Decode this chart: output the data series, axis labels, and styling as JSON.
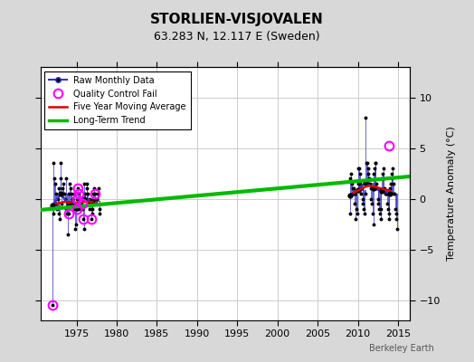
{
  "title": "STORLIEN-VISJOVALEN",
  "subtitle": "63.283 N, 12.117 E (Sweden)",
  "ylabel": "Temperature Anomaly (°C)",
  "watermark": "Berkeley Earth",
  "xlim": [
    1970.5,
    2016.5
  ],
  "ylim": [
    -12,
    13
  ],
  "yticks": [
    -10,
    -5,
    0,
    5,
    10
  ],
  "xticks": [
    1975,
    1980,
    1985,
    1990,
    1995,
    2000,
    2005,
    2010,
    2015
  ],
  "background_color": "#d8d8d8",
  "plot_bg_color": "#ffffff",
  "grid_color": "#cccccc",
  "segment1_years": [
    1972,
    1973,
    1974,
    1975,
    1976,
    1977
  ],
  "segment1_monthly_data": [
    [
      1972,
      [
        -10.5,
        -1.5,
        3.5,
        2.0,
        1.5,
        0.5,
        -0.5,
        -1.0,
        0.0,
        1.0,
        -1.5,
        -2.0
      ]
    ],
    [
      1973,
      [
        3.5,
        2.0,
        -0.5,
        1.0,
        1.5,
        0.5,
        0.5,
        0.0,
        -1.0,
        2.0,
        -1.5,
        -3.5
      ]
    ],
    [
      1974,
      [
        -1.5,
        0.5,
        1.5,
        1.0,
        0.5,
        -0.5,
        0.0,
        -0.5,
        -1.0,
        0.5,
        -3.0,
        -2.5
      ]
    ],
    [
      1975,
      [
        -1.0,
        0.0,
        1.0,
        0.5,
        -0.5,
        -1.0,
        -0.5,
        -0.5,
        0.0,
        -1.0,
        -2.0,
        -3.0
      ]
    ],
    [
      1976,
      [
        1.5,
        0.5,
        0.0,
        1.0,
        1.5,
        0.5,
        -0.5,
        -1.0,
        0.0,
        -0.5,
        -2.0,
        -1.5
      ]
    ],
    [
      1977,
      [
        -1.0,
        0.5,
        1.0,
        0.5,
        0.0,
        -0.5,
        0.0,
        -0.5,
        0.5,
        1.0,
        -1.0,
        -1.5
      ]
    ]
  ],
  "segment1_annual_means": [
    -0.7,
    0.5,
    -0.5,
    -0.9,
    0.0,
    -0.2
  ],
  "segment2_years": [
    2009,
    2010,
    2011,
    2012,
    2013,
    2014
  ],
  "segment2_monthly_data": [
    [
      2009,
      [
        -1.5,
        2.0,
        2.5,
        1.5,
        1.0,
        0.5,
        1.0,
        -0.5,
        0.5,
        -2.0,
        -1.0,
        -1.5
      ]
    ],
    [
      2010,
      [
        1.5,
        3.0,
        3.0,
        2.5,
        1.5,
        0.5,
        1.0,
        0.0,
        -0.5,
        -1.0,
        -1.5,
        0.5
      ]
    ],
    [
      2011,
      [
        8.0,
        3.5,
        3.5,
        3.0,
        2.5,
        2.0,
        1.5,
        1.0,
        0.0,
        -0.5,
        -1.5,
        -2.5
      ]
    ],
    [
      2012,
      [
        2.5,
        3.0,
        3.5,
        3.5,
        1.5,
        1.0,
        0.0,
        -0.5,
        -1.0,
        -1.5,
        -2.0,
        -1.0
      ]
    ],
    [
      2013,
      [
        2.0,
        2.5,
        3.0,
        2.0,
        1.0,
        0.5,
        0.5,
        0.5,
        -0.5,
        -1.0,
        -2.0,
        -1.5
      ]
    ],
    [
      2014,
      [
        1.0,
        1.5,
        2.0,
        2.5,
        3.0,
        1.5,
        0.5,
        0.5,
        -1.0,
        -1.5,
        -2.0,
        -3.0
      ]
    ]
  ],
  "segment2_annual_means": [
    0.3,
    0.9,
    1.6,
    1.0,
    0.8,
    0.5
  ],
  "qc_fail_points": [
    [
      1972.0,
      -10.5
    ],
    [
      1974.0,
      -1.5
    ],
    [
      1975.0,
      -1.0
    ],
    [
      1975.083,
      0.0
    ],
    [
      1975.167,
      1.0
    ],
    [
      1975.25,
      0.5
    ],
    [
      1975.75,
      -0.5
    ],
    [
      1975.833,
      -2.0
    ],
    [
      1976.833,
      -2.0
    ],
    [
      1977.25,
      0.5
    ],
    [
      2013.917,
      5.2
    ]
  ],
  "moving_avg_seg1_years": [
    1972.5,
    1973.0,
    1973.5,
    1974.0,
    1974.5,
    1975.0,
    1975.5,
    1976.0,
    1976.5,
    1977.0
  ],
  "moving_avg_seg1_vals": [
    -0.5,
    -0.4,
    -0.3,
    -0.4,
    -0.3,
    -0.4,
    -0.3,
    -0.3,
    -0.3,
    -0.3
  ],
  "moving_avg_seg2_years": [
    2009.5,
    2010.0,
    2010.5,
    2011.0,
    2011.5,
    2012.0,
    2012.5,
    2013.0,
    2013.5,
    2014.0
  ],
  "moving_avg_seg2_vals": [
    0.6,
    0.8,
    1.0,
    1.2,
    1.3,
    1.2,
    1.1,
    1.0,
    0.9,
    0.8
  ],
  "trend_x": [
    1970.5,
    2016.5
  ],
  "trend_y": [
    -1.1,
    2.2
  ],
  "line_color": "#3333cc",
  "dot_color": "#000000",
  "qc_color": "#ff00ff",
  "moving_avg_color": "#dd0000",
  "trend_color": "#00bb00"
}
